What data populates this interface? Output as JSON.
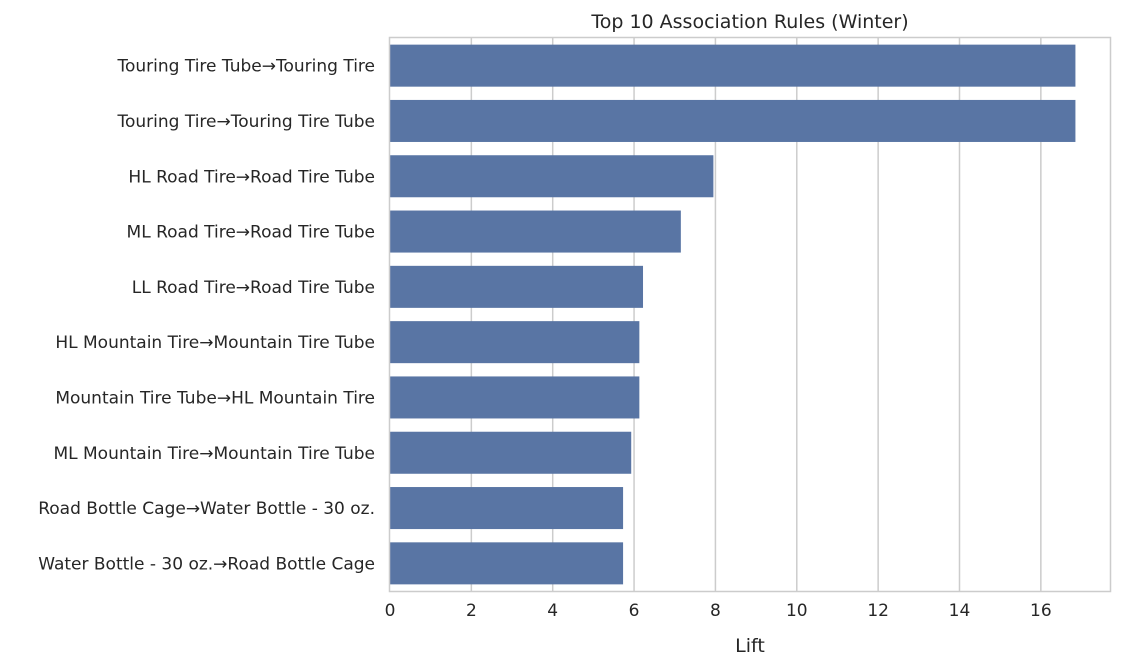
{
  "chart_data": {
    "type": "bar",
    "orientation": "horizontal",
    "title": "Top 10 Association Rules (Winter)",
    "xlabel": "Lift",
    "ylabel": "",
    "categories": [
      "Touring Tire Tube→Touring Tire",
      "Touring Tire→Touring Tire Tube",
      "HL Road Tire→Road Tire Tube",
      "ML Road Tire→Road Tire Tube",
      "LL Road Tire→Road Tire Tube",
      "HL Mountain Tire→Mountain Tire Tube",
      "Mountain Tire Tube→HL Mountain Tire",
      "ML Mountain Tire→Mountain Tire Tube",
      "Road Bottle Cage→Water Bottle - 30 oz.",
      "Water Bottle - 30 oz.→Road Bottle Cage"
    ],
    "values": [
      16.85,
      16.85,
      7.95,
      7.15,
      6.22,
      6.13,
      6.13,
      5.93,
      5.73,
      5.73
    ],
    "xlim": [
      0,
      17.7
    ],
    "xticks": [
      0,
      2,
      4,
      6,
      8,
      10,
      12,
      14,
      16
    ],
    "grid": true,
    "bar_color": "#5975a4",
    "grid_color": "#cccccc",
    "axis_color": "#cccccc"
  }
}
